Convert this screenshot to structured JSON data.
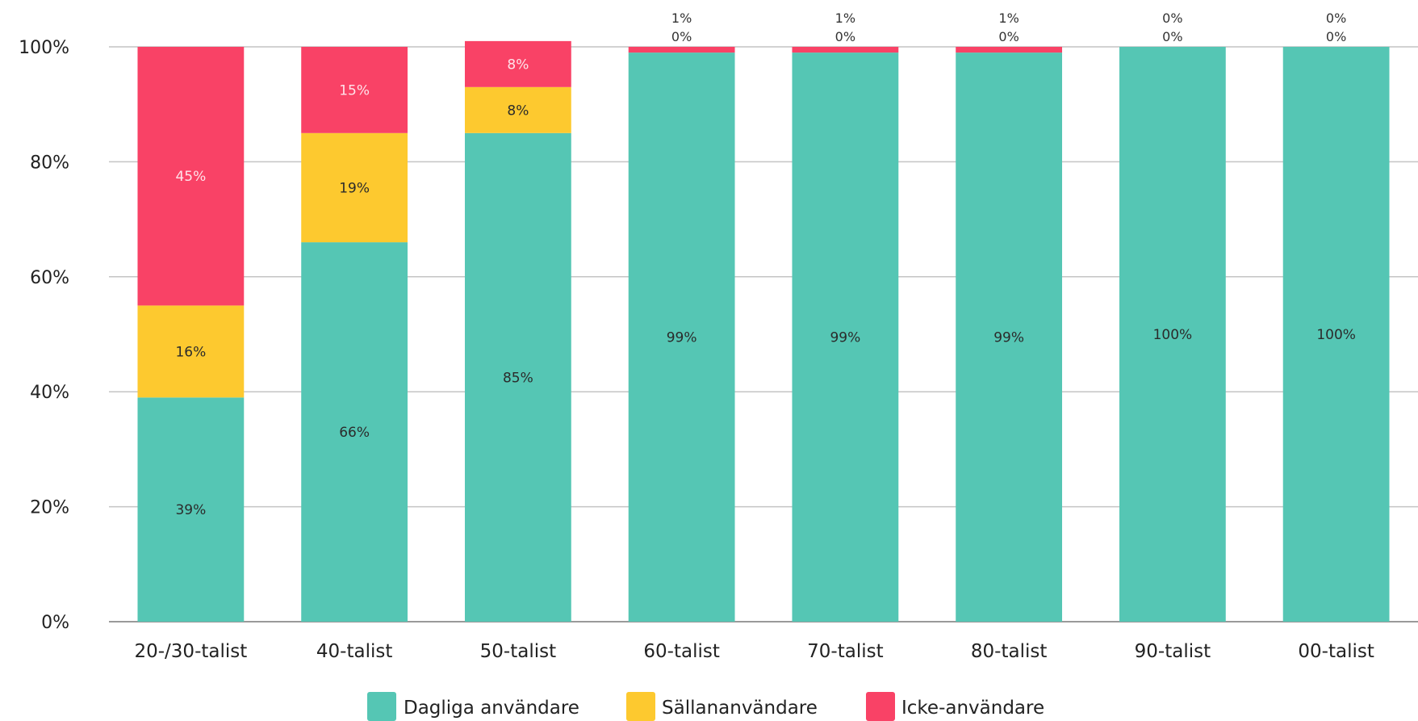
{
  "chart_data": {
    "type": "bar",
    "stacked": true,
    "categories": [
      "20-/30-talist",
      "40-talist",
      "50-talist",
      "60-talist",
      "70-talist",
      "80-talist",
      "90-talist",
      "00-talist"
    ],
    "series": [
      {
        "name": "Dagliga användare",
        "color": "#55c6b4",
        "values": [
          39,
          66,
          85,
          99,
          99,
          99,
          100,
          100
        ],
        "labels": [
          "39%",
          "66%",
          "85%",
          "99%",
          "99%",
          "99%",
          "100%",
          "100%"
        ]
      },
      {
        "name": "Sällananvändare",
        "color": "#fdc92f",
        "values": [
          16,
          19,
          8,
          0,
          0,
          0,
          0,
          0
        ],
        "labels": [
          "16%",
          "19%",
          "8%",
          "0%",
          "0%",
          "0%",
          "0%",
          "0%"
        ]
      },
      {
        "name": "Icke-användare",
        "color": "#f94266",
        "values": [
          45,
          15,
          8,
          1,
          1,
          1,
          0,
          0
        ],
        "labels": [
          "45%",
          "15%",
          "8%",
          "1%",
          "1%",
          "1%",
          "0%",
          "0%"
        ]
      }
    ],
    "ylim": [
      0,
      100
    ],
    "yticks": [
      "0%",
      "20%",
      "40%",
      "60%",
      "80%",
      "100%"
    ],
    "grid": true,
    "legend_position": "bottom"
  }
}
